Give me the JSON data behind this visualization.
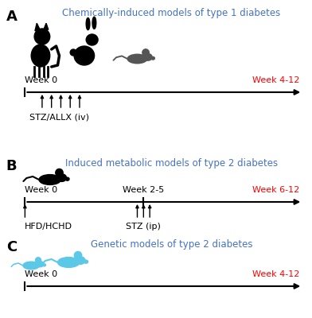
{
  "panel_A_title": "Chemically-induced models of type 1 diabetes",
  "panel_B_title": "Induced metabolic models of type 2 diabetes",
  "panel_C_title": "Genetic models of type 2 diabetes",
  "title_color": "#4472C4",
  "week_end_color": "#FF0000",
  "black": "#000000",
  "blue_mouse_color": "#5BC8E8",
  "bg_color": "#FFFFFF",
  "panel_A_label": "A",
  "panel_B_label": "B",
  "panel_C_label": "C",
  "panel_A_week0": "Week 0",
  "panel_A_week_end": "Week 4-12",
  "panel_A_stz_label": "STZ/ALLX (iv)",
  "panel_B_week0": "Week 0",
  "panel_B_week_mid": "Week 2-5",
  "panel_B_week_end": "Week 6-12",
  "panel_B_hfd_label": "HFD/HCHD",
  "panel_B_stz_label": "STZ (ip)",
  "panel_C_week0": "Week 0",
  "panel_C_week_end": "Week 4-12",
  "figw": 3.92,
  "figh": 4.0,
  "dpi": 100
}
